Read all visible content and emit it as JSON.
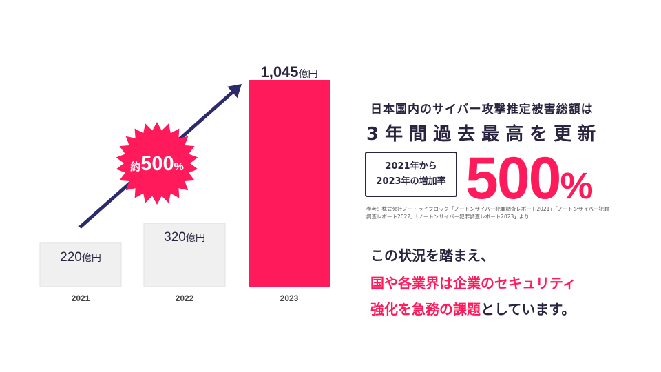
{
  "chart_data": {
    "type": "bar",
    "categories": [
      "2021",
      "2022",
      "2023"
    ],
    "values": [
      220,
      320,
      1045
    ],
    "value_labels": [
      {
        "number": "220",
        "unit": "億円"
      },
      {
        "number": "320",
        "unit": "億円"
      },
      {
        "number": "1,045",
        "unit": "億円"
      }
    ],
    "ylim": [
      0,
      1045
    ],
    "grid": false,
    "colors": {
      "normal": "#f0f0f0",
      "highlight": "#ff1a5b",
      "arrow": "#2b2a6b",
      "burst": "#ff1a5b"
    },
    "highlight_index": 2,
    "annotation": {
      "prefix": "約",
      "number": "500",
      "suffix": "%"
    }
  },
  "headline": "日本国内のサイバー攻撃推定被害総額は",
  "subhead": "3年間過去最高を更新",
  "period": {
    "line1": "2021年から",
    "line2": "2023年の増加率"
  },
  "big_value": {
    "number": "500",
    "unit": "%"
  },
  "source": "参考：株式会社ノートライフロック「ノートンサイバー犯罪調査レポート2021」「ノートンサイバー犯罪調査レポート2022」「ノートンサイバー犯罪調査レポート2023」より",
  "message": {
    "line1": "この状況を踏まえ、",
    "line2": "国や各業界は企業のセキュリティ",
    "line3_highlight": "強化を急務の課題",
    "line3_rest": "としています。"
  }
}
